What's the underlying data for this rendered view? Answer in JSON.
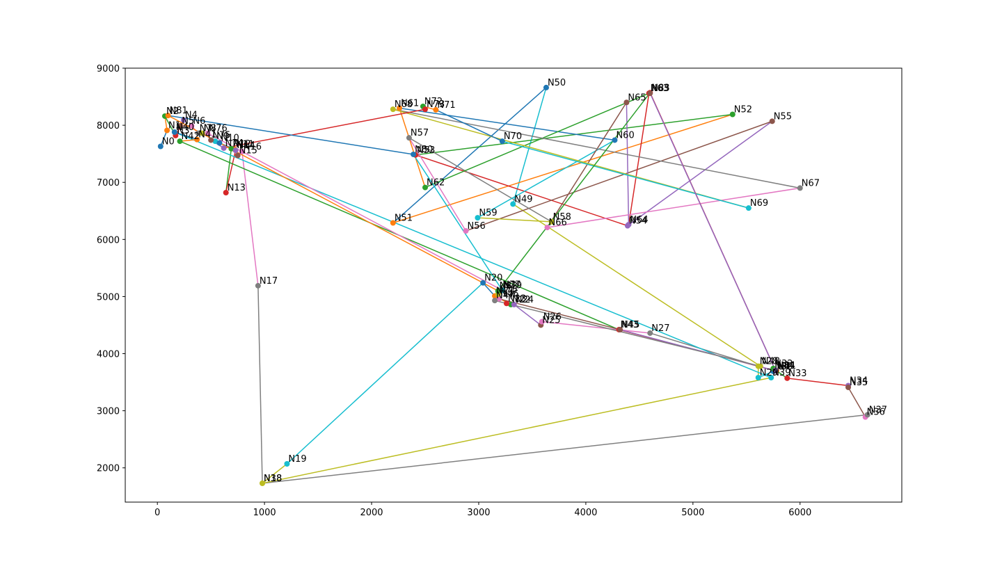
{
  "chart_data": {
    "type": "line",
    "title": "",
    "xlabel": "",
    "ylabel": "",
    "xlim": [
      -300,
      6950
    ],
    "ylim": [
      1400,
      9000
    ],
    "xticks": [
      0,
      1000,
      2000,
      3000,
      4000,
      5000,
      6000
    ],
    "yticks": [
      2000,
      3000,
      4000,
      5000,
      6000,
      7000,
      8000,
      9000
    ],
    "grid": false,
    "colors": [
      "#1f77b4",
      "#ff7f0e",
      "#2ca02c",
      "#d62728",
      "#9467bd",
      "#8c564b",
      "#e377c2",
      "#7f7f7f",
      "#bcbd22",
      "#17becf"
    ],
    "nodes": [
      {
        "label": "N0",
        "x": 30,
        "y": 7630
      },
      {
        "label": "N1",
        "x": 90,
        "y": 7910
      },
      {
        "label": "N2",
        "x": 70,
        "y": 8160
      },
      {
        "label": "N3",
        "x": 170,
        "y": 7820
      },
      {
        "label": "N4",
        "x": 245,
        "y": 8090
      },
      {
        "label": "N5",
        "x": 215,
        "y": 7990
      },
      {
        "label": "N6",
        "x": 320,
        "y": 7990
      },
      {
        "label": "N7",
        "x": 380,
        "y": 7860
      },
      {
        "label": "N8",
        "x": 420,
        "y": 7860
      },
      {
        "label": "N9",
        "x": 540,
        "y": 7720
      },
      {
        "label": "N10",
        "x": 580,
        "y": 7690
      },
      {
        "label": "N11",
        "x": 720,
        "y": 7580
      },
      {
        "label": "N12",
        "x": 690,
        "y": 7590
      },
      {
        "label": "N13",
        "x": 640,
        "y": 6820
      },
      {
        "label": "N14",
        "x": 730,
        "y": 7560
      },
      {
        "label": "N15",
        "x": 750,
        "y": 7470
      },
      {
        "label": "N16",
        "x": 790,
        "y": 7540
      },
      {
        "label": "N17",
        "x": 940,
        "y": 5190
      },
      {
        "label": "N18",
        "x": 980,
        "y": 1730
      },
      {
        "label": "N19",
        "x": 1210,
        "y": 2070
      },
      {
        "label": "N20",
        "x": 3040,
        "y": 5240
      },
      {
        "label": "N21",
        "x": 3150,
        "y": 5010
      },
      {
        "label": "N22",
        "x": 3300,
        "y": 4860
      },
      {
        "label": "N23",
        "x": 3260,
        "y": 4880
      },
      {
        "label": "N24",
        "x": 3330,
        "y": 4860
      },
      {
        "label": "N25",
        "x": 3580,
        "y": 4500
      },
      {
        "label": "N26",
        "x": 3590,
        "y": 4560
      },
      {
        "label": "N27",
        "x": 4600,
        "y": 4360
      },
      {
        "label": "N28",
        "x": 5610,
        "y": 3780
      },
      {
        "label": "N29",
        "x": 5610,
        "y": 3580
      },
      {
        "label": "N30",
        "x": 5750,
        "y": 3690
      },
      {
        "label": "N31",
        "x": 5780,
        "y": 3700
      },
      {
        "label": "N32",
        "x": 5750,
        "y": 3740
      },
      {
        "label": "N33",
        "x": 5880,
        "y": 3570
      },
      {
        "label": "N34",
        "x": 6450,
        "y": 3440
      },
      {
        "label": "N35",
        "x": 6450,
        "y": 3410
      },
      {
        "label": "N36",
        "x": 6610,
        "y": 2890
      },
      {
        "label": "N37",
        "x": 6630,
        "y": 2930
      },
      {
        "label": "N38",
        "x": 980,
        "y": 1730
      },
      {
        "label": "N39",
        "x": 5730,
        "y": 3580
      },
      {
        "label": "N40",
        "x": 160,
        "y": 7880
      },
      {
        "label": "N41",
        "x": 370,
        "y": 7750
      },
      {
        "label": "N42",
        "x": 210,
        "y": 7720
      },
      {
        "label": "N43",
        "x": 4310,
        "y": 4420
      },
      {
        "label": "N44",
        "x": 5770,
        "y": 3700
      },
      {
        "label": "N45",
        "x": 4320,
        "y": 4420
      },
      {
        "label": "N46",
        "x": 3190,
        "y": 4960
      },
      {
        "label": "N47",
        "x": 3150,
        "y": 4930
      },
      {
        "label": "N48",
        "x": 5630,
        "y": 3780
      },
      {
        "label": "N49",
        "x": 3320,
        "y": 6620
      },
      {
        "label": "N50",
        "x": 3630,
        "y": 8660
      },
      {
        "label": "N51",
        "x": 2200,
        "y": 6290
      },
      {
        "label": "N52",
        "x": 5370,
        "y": 8190
      },
      {
        "label": "N53",
        "x": 2410,
        "y": 7480
      },
      {
        "label": "N54",
        "x": 4390,
        "y": 6240
      },
      {
        "label": "N55",
        "x": 5740,
        "y": 8070
      },
      {
        "label": "N56",
        "x": 2880,
        "y": 6150
      },
      {
        "label": "N57",
        "x": 2350,
        "y": 7780
      },
      {
        "label": "N58",
        "x": 3680,
        "y": 6310
      },
      {
        "label": "N59",
        "x": 2990,
        "y": 6380
      },
      {
        "label": "N60",
        "x": 4270,
        "y": 7740
      },
      {
        "label": "N61",
        "x": 2260,
        "y": 8300
      },
      {
        "label": "N62",
        "x": 2500,
        "y": 6910
      },
      {
        "label": "N63",
        "x": 4590,
        "y": 8560
      },
      {
        "label": "N64",
        "x": 4400,
        "y": 6260
      },
      {
        "label": "N65",
        "x": 4380,
        "y": 8400
      },
      {
        "label": "N66",
        "x": 3640,
        "y": 6210
      },
      {
        "label": "N67",
        "x": 6000,
        "y": 6900
      },
      {
        "label": "N68",
        "x": 2200,
        "y": 8280
      },
      {
        "label": "N69",
        "x": 5520,
        "y": 6550
      },
      {
        "label": "N70",
        "x": 3220,
        "y": 7720
      },
      {
        "label": "N71",
        "x": 2600,
        "y": 8270
      },
      {
        "label": "N72",
        "x": 2480,
        "y": 8330
      },
      {
        "label": "N73",
        "x": 2500,
        "y": 8280
      },
      {
        "label": "N74",
        "x": 620,
        "y": 7600
      },
      {
        "label": "N75",
        "x": 500,
        "y": 7740
      },
      {
        "label": "N76",
        "x": 470,
        "y": 7860
      },
      {
        "label": "N77",
        "x": 3210,
        "y": 5120
      },
      {
        "label": "N78",
        "x": 3180,
        "y": 5040
      },
      {
        "label": "N79",
        "x": 3220,
        "y": 5110
      },
      {
        "label": "N80",
        "x": 2390,
        "y": 7490
      },
      {
        "label": "N81",
        "x": 100,
        "y": 8170
      },
      {
        "label": "N82",
        "x": 3180,
        "y": 5100
      },
      {
        "label": "N83",
        "x": 4600,
        "y": 8570
      },
      {
        "label": "N84",
        "x": 5770,
        "y": 3710
      },
      {
        "label": "N85",
        "x": 4600,
        "y": 8560
      }
    ],
    "edges": [
      [
        "N0",
        "N1"
      ],
      [
        "N1",
        "N2"
      ],
      [
        "N2",
        "N3"
      ],
      [
        "N3",
        "N4"
      ],
      [
        "N4",
        "N5"
      ],
      [
        "N5",
        "N6"
      ],
      [
        "N6",
        "N7"
      ],
      [
        "N7",
        "N8"
      ],
      [
        "N8",
        "N9"
      ],
      [
        "N9",
        "N10"
      ],
      [
        "N10",
        "N11"
      ],
      [
        "N11",
        "N12"
      ],
      [
        "N12",
        "N13"
      ],
      [
        "N13",
        "N14"
      ],
      [
        "N14",
        "N15"
      ],
      [
        "N15",
        "N16"
      ],
      [
        "N16",
        "N17"
      ],
      [
        "N17",
        "N18"
      ],
      [
        "N18",
        "N19"
      ],
      [
        "N19",
        "N20"
      ],
      [
        "N20",
        "N21"
      ],
      [
        "N21",
        "N22"
      ],
      [
        "N22",
        "N23"
      ],
      [
        "N23",
        "N24"
      ],
      [
        "N24",
        "N25"
      ],
      [
        "N25",
        "N26"
      ],
      [
        "N26",
        "N27"
      ],
      [
        "N27",
        "N28"
      ],
      [
        "N28",
        "N29"
      ],
      [
        "N29",
        "N30"
      ],
      [
        "N30",
        "N31"
      ],
      [
        "N31",
        "N32"
      ],
      [
        "N32",
        "N33"
      ],
      [
        "N33",
        "N34"
      ],
      [
        "N34",
        "N35"
      ],
      [
        "N35",
        "N36"
      ],
      [
        "N36",
        "N37"
      ],
      [
        "N37",
        "N38"
      ],
      [
        "N38",
        "N39"
      ],
      [
        "N39",
        "N40"
      ],
      [
        "N40",
        "N41"
      ],
      [
        "N41",
        "N42"
      ],
      [
        "N42",
        "N43"
      ],
      [
        "N43",
        "N44"
      ],
      [
        "N44",
        "N45"
      ],
      [
        "N45",
        "N46"
      ],
      [
        "N46",
        "N47"
      ],
      [
        "N47",
        "N48"
      ],
      [
        "N48",
        "N49"
      ],
      [
        "N49",
        "N50"
      ],
      [
        "N50",
        "N51"
      ],
      [
        "N51",
        "N52"
      ],
      [
        "N52",
        "N53"
      ],
      [
        "N53",
        "N54"
      ],
      [
        "N54",
        "N55"
      ],
      [
        "N55",
        "N56"
      ],
      [
        "N56",
        "N57"
      ],
      [
        "N57",
        "N58"
      ],
      [
        "N58",
        "N59"
      ],
      [
        "N59",
        "N60"
      ],
      [
        "N60",
        "N61"
      ],
      [
        "N61",
        "N62"
      ],
      [
        "N62",
        "N63"
      ],
      [
        "N63",
        "N64"
      ],
      [
        "N64",
        "N65"
      ],
      [
        "N65",
        "N66"
      ],
      [
        "N66",
        "N67"
      ],
      [
        "N67",
        "N68"
      ],
      [
        "N68",
        "N69"
      ],
      [
        "N69",
        "N70"
      ],
      [
        "N70",
        "N71"
      ],
      [
        "N71",
        "N72"
      ],
      [
        "N72",
        "N73"
      ],
      [
        "N73",
        "N74"
      ],
      [
        "N74",
        "N75"
      ],
      [
        "N75",
        "N76"
      ],
      [
        "N76",
        "N77"
      ],
      [
        "N77",
        "N78"
      ],
      [
        "N78",
        "N79"
      ],
      [
        "N79",
        "N80"
      ],
      [
        "N80",
        "N81"
      ],
      [
        "N81",
        "N82"
      ],
      [
        "N82",
        "N83"
      ],
      [
        "N83",
        "N84"
      ],
      [
        "N84",
        "N85"
      ]
    ]
  }
}
